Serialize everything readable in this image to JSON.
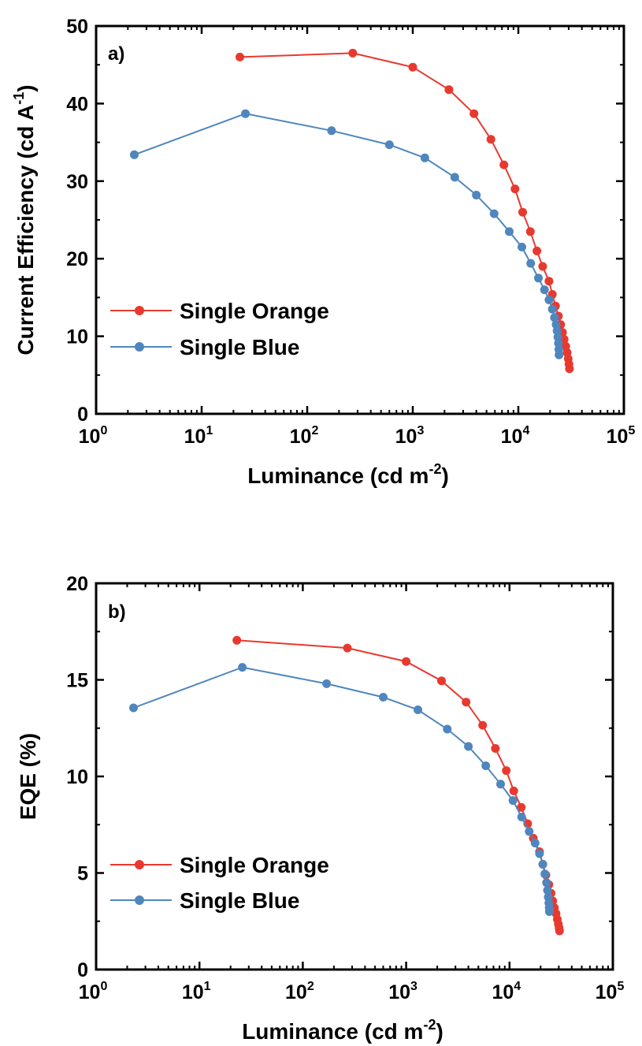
{
  "colors": {
    "orange": "#e8392f",
    "blue": "#4f86bd",
    "axis": "#000000"
  },
  "chart_data": [
    {
      "type": "line",
      "panel_label": "a)",
      "xlabel": "Luminance (cd m",
      "xlabel_sup": "-2",
      "xlabel_tail": ")",
      "ylabel": "Current Efficiency (cd A",
      "ylabel_sup": "-1",
      "ylabel_tail": ")",
      "xscale": "log",
      "xlim": [
        1,
        100000
      ],
      "ylim": [
        0,
        50
      ],
      "x_ticks": [
        {
          "base": "10",
          "exp": "0",
          "value": 1
        },
        {
          "base": "10",
          "exp": "1",
          "value": 10
        },
        {
          "base": "10",
          "exp": "2",
          "value": 100
        },
        {
          "base": "10",
          "exp": "3",
          "value": 1000
        },
        {
          "base": "10",
          "exp": "4",
          "value": 10000
        },
        {
          "base": "10",
          "exp": "5",
          "value": 100000
        }
      ],
      "y_ticks": [
        "0",
        "10",
        "20",
        "30",
        "40",
        "50"
      ],
      "legend_position": "bottom-left",
      "series": [
        {
          "name": "Single Orange",
          "color": "#e8392f",
          "x": [
            23,
            270,
            1000,
            2200,
            3800,
            5500,
            7300,
            9300,
            11000,
            13000,
            15000,
            17000,
            19500,
            21000,
            22500,
            24000,
            25200,
            26200,
            27200,
            28200,
            29000,
            29700,
            30200,
            30500
          ],
          "y": [
            46,
            46.5,
            44.7,
            41.8,
            38.7,
            35.4,
            32.1,
            29,
            26,
            23.5,
            21,
            19,
            17.1,
            15.4,
            13.9,
            12.6,
            11.5,
            10.5,
            9.6,
            8.7,
            7.9,
            7.1,
            6.4,
            5.8
          ]
        },
        {
          "name": "Single Blue",
          "color": "#4f86bd",
          "x": [
            2.3,
            26,
            170,
            600,
            1300,
            2500,
            4000,
            5900,
            8200,
            10800,
            13100,
            15500,
            17700,
            19500,
            21000,
            22000,
            22800,
            23300,
            23700,
            24000,
            24200,
            24300
          ],
          "y": [
            33.4,
            38.7,
            36.5,
            34.7,
            33,
            30.5,
            28.2,
            25.8,
            23.5,
            21.5,
            19.4,
            17.5,
            16,
            14.7,
            13.5,
            12.4,
            11.5,
            10.7,
            9.9,
            9.1,
            8.3,
            7.6
          ]
        }
      ]
    },
    {
      "type": "line",
      "panel_label": "b)",
      "xlabel": "Luminance (cd m",
      "xlabel_sup": "-2",
      "xlabel_tail": ")",
      "ylabel": "EQE (%)",
      "ylabel_sup": "",
      "ylabel_tail": "",
      "xscale": "log",
      "xlim": [
        1,
        100000
      ],
      "ylim": [
        0,
        20
      ],
      "x_ticks": [
        {
          "base": "10",
          "exp": "0",
          "value": 1
        },
        {
          "base": "10",
          "exp": "1",
          "value": 10
        },
        {
          "base": "10",
          "exp": "2",
          "value": 100
        },
        {
          "base": "10",
          "exp": "3",
          "value": 1000
        },
        {
          "base": "10",
          "exp": "4",
          "value": 10000
        },
        {
          "base": "10",
          "exp": "5",
          "value": 100000
        }
      ],
      "y_ticks": [
        "0",
        "5",
        "10",
        "15",
        "20"
      ],
      "legend_position": "bottom-left",
      "series": [
        {
          "name": "Single Orange",
          "color": "#e8392f",
          "x": [
            23,
            270,
            1000,
            2200,
            3800,
            5500,
            7300,
            9300,
            11000,
            13000,
            15000,
            17000,
            19500,
            21000,
            22500,
            24000,
            25200,
            26200,
            27200,
            28200,
            29000,
            29700,
            30200,
            30500
          ],
          "y": [
            17.05,
            16.65,
            15.95,
            14.95,
            13.85,
            12.65,
            11.45,
            10.3,
            9.25,
            8.4,
            7.55,
            6.8,
            6.1,
            5.45,
            4.9,
            4.4,
            3.95,
            3.55,
            3.2,
            2.9,
            2.6,
            2.35,
            2.15,
            2.0
          ]
        },
        {
          "name": "Single Blue",
          "color": "#4f86bd",
          "x": [
            2.3,
            26,
            170,
            600,
            1300,
            2500,
            4000,
            5900,
            8200,
            10800,
            13100,
            15500,
            17700,
            19500,
            21000,
            22000,
            22800,
            23300,
            23700,
            24000,
            24200,
            24300
          ],
          "y": [
            13.55,
            15.65,
            14.8,
            14.1,
            13.45,
            12.45,
            11.55,
            10.55,
            9.6,
            8.75,
            7.9,
            7.15,
            6.55,
            6.0,
            5.45,
            4.95,
            4.5,
            4.1,
            3.75,
            3.45,
            3.2,
            3.0
          ]
        }
      ]
    }
  ]
}
